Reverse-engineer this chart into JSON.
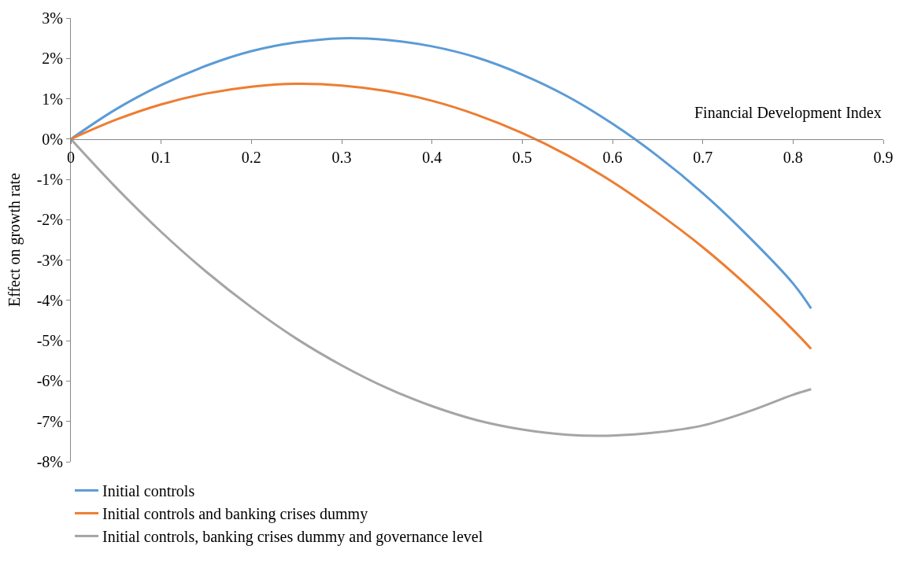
{
  "chart_data": {
    "type": "line",
    "xlabel": "Financial Development Index",
    "ylabel": "Effect on growth rate",
    "x": [
      0,
      0.05,
      0.1,
      0.15,
      0.2,
      0.25,
      0.3,
      0.35,
      0.4,
      0.45,
      0.5,
      0.55,
      0.6,
      0.65,
      0.7,
      0.75,
      0.8,
      0.82
    ],
    "series": [
      {
        "name": "Initial controls",
        "color": "#5b9bd5",
        "values": [
          0,
          0.74,
          1.34,
          1.82,
          2.18,
          2.4,
          2.5,
          2.46,
          2.3,
          2.02,
          1.6,
          1.06,
          0.38,
          -0.42,
          -1.34,
          -2.4,
          -3.58,
          -4.2
        ]
      },
      {
        "name": "Initial controls and banking crises dummy",
        "color": "#ed7d31",
        "values": [
          0,
          0.48,
          0.86,
          1.13,
          1.3,
          1.37,
          1.33,
          1.19,
          0.95,
          0.6,
          0.15,
          -0.4,
          -1.06,
          -1.83,
          -2.68,
          -3.65,
          -4.73,
          -5.2
        ]
      },
      {
        "name": "Initial controls, banking crises dummy and governance level",
        "color": "#a5a5a5",
        "values": [
          0,
          -1.2,
          -2.3,
          -3.29,
          -4.17,
          -4.95,
          -5.61,
          -6.17,
          -6.62,
          -6.97,
          -7.2,
          -7.33,
          -7.35,
          -7.27,
          -7.1,
          -6.76,
          -6.34,
          -6.2
        ]
      }
    ],
    "xlim": [
      0,
      0.9
    ],
    "xticks": [
      0,
      0.1,
      0.2,
      0.3,
      0.4,
      0.5,
      0.6,
      0.7,
      0.8,
      0.9
    ],
    "ylim": [
      -8,
      3
    ],
    "yticks": [
      {
        "value": 3,
        "label": "3%"
      },
      {
        "value": 2,
        "label": "2%"
      },
      {
        "value": 1,
        "label": "1%"
      },
      {
        "value": 0,
        "label": "0%"
      },
      {
        "value": -1,
        "label": "-1%"
      },
      {
        "value": -2,
        "label": "-2%"
      },
      {
        "value": -3,
        "label": "-3%"
      },
      {
        "value": -4,
        "label": "-4%"
      },
      {
        "value": -5,
        "label": "-5%"
      },
      {
        "value": -6,
        "label": "-6%"
      },
      {
        "value": -7,
        "label": "-7%"
      },
      {
        "value": -8,
        "label": "-8%"
      }
    ],
    "legend": "bottom left",
    "marker": "none",
    "line_style": "solid"
  }
}
